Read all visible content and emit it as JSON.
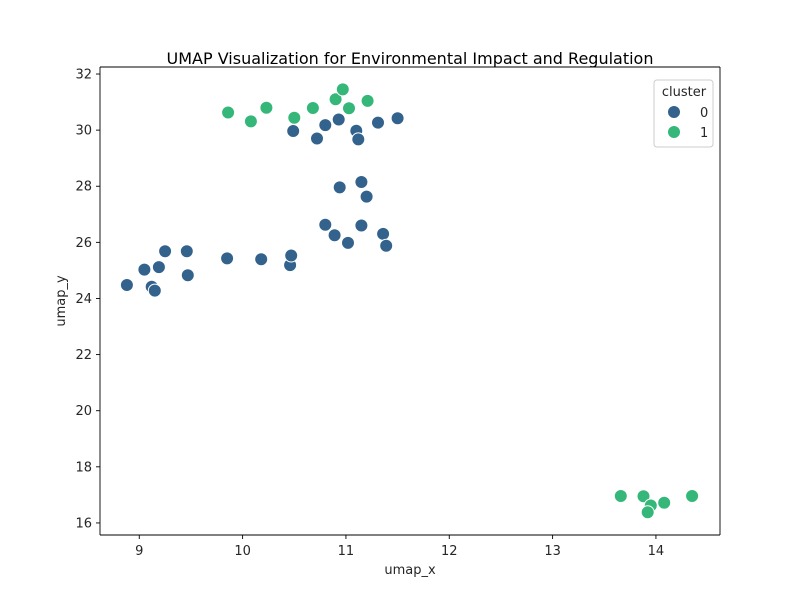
{
  "chart_data": {
    "type": "scatter",
    "title": "UMAP Visualization for Environmental Impact and Regulation",
    "xlabel": "umap_x",
    "ylabel": "umap_y",
    "xlim": [
      8.62,
      14.62
    ],
    "ylim": [
      15.57,
      32.25
    ],
    "xticks": [
      9,
      10,
      11,
      12,
      13,
      14
    ],
    "yticks": [
      16,
      18,
      20,
      22,
      24,
      26,
      28,
      30,
      32
    ],
    "grid": false,
    "legend": {
      "title": "cluster",
      "position": "top-right",
      "entries": [
        {
          "label": "0",
          "color": "#33638d"
        },
        {
          "label": "1",
          "color": "#35b779"
        }
      ]
    },
    "series": [
      {
        "name": "0",
        "color": "#33638d",
        "points": [
          [
            10.49,
            29.97
          ],
          [
            10.72,
            29.7
          ],
          [
            10.8,
            30.18
          ],
          [
            10.93,
            30.38
          ],
          [
            11.1,
            29.98
          ],
          [
            11.12,
            29.67
          ],
          [
            11.31,
            30.27
          ],
          [
            11.5,
            30.42
          ],
          [
            10.94,
            27.96
          ],
          [
            11.15,
            28.15
          ],
          [
            11.2,
            27.63
          ],
          [
            10.8,
            26.63
          ],
          [
            10.89,
            26.25
          ],
          [
            11.02,
            25.98
          ],
          [
            11.15,
            26.6
          ],
          [
            11.36,
            26.3
          ],
          [
            11.39,
            25.88
          ],
          [
            8.88,
            24.48
          ],
          [
            9.05,
            25.03
          ],
          [
            9.12,
            24.42
          ],
          [
            9.15,
            24.28
          ],
          [
            9.19,
            25.12
          ],
          [
            9.25,
            25.68
          ],
          [
            9.46,
            25.68
          ],
          [
            9.47,
            24.83
          ],
          [
            9.85,
            25.43
          ],
          [
            10.18,
            25.4
          ],
          [
            10.46,
            25.19
          ],
          [
            10.47,
            25.53
          ]
        ]
      },
      {
        "name": "1",
        "color": "#35b779",
        "points": [
          [
            9.86,
            30.63
          ],
          [
            10.08,
            30.31
          ],
          [
            10.23,
            30.8
          ],
          [
            10.5,
            30.44
          ],
          [
            10.68,
            30.79
          ],
          [
            10.9,
            31.1
          ],
          [
            10.97,
            31.45
          ],
          [
            11.03,
            30.78
          ],
          [
            11.21,
            31.04
          ],
          [
            13.66,
            16.96
          ],
          [
            13.88,
            16.95
          ],
          [
            13.95,
            16.62
          ],
          [
            13.92,
            16.38
          ],
          [
            14.08,
            16.72
          ],
          [
            14.35,
            16.96
          ]
        ]
      }
    ]
  }
}
